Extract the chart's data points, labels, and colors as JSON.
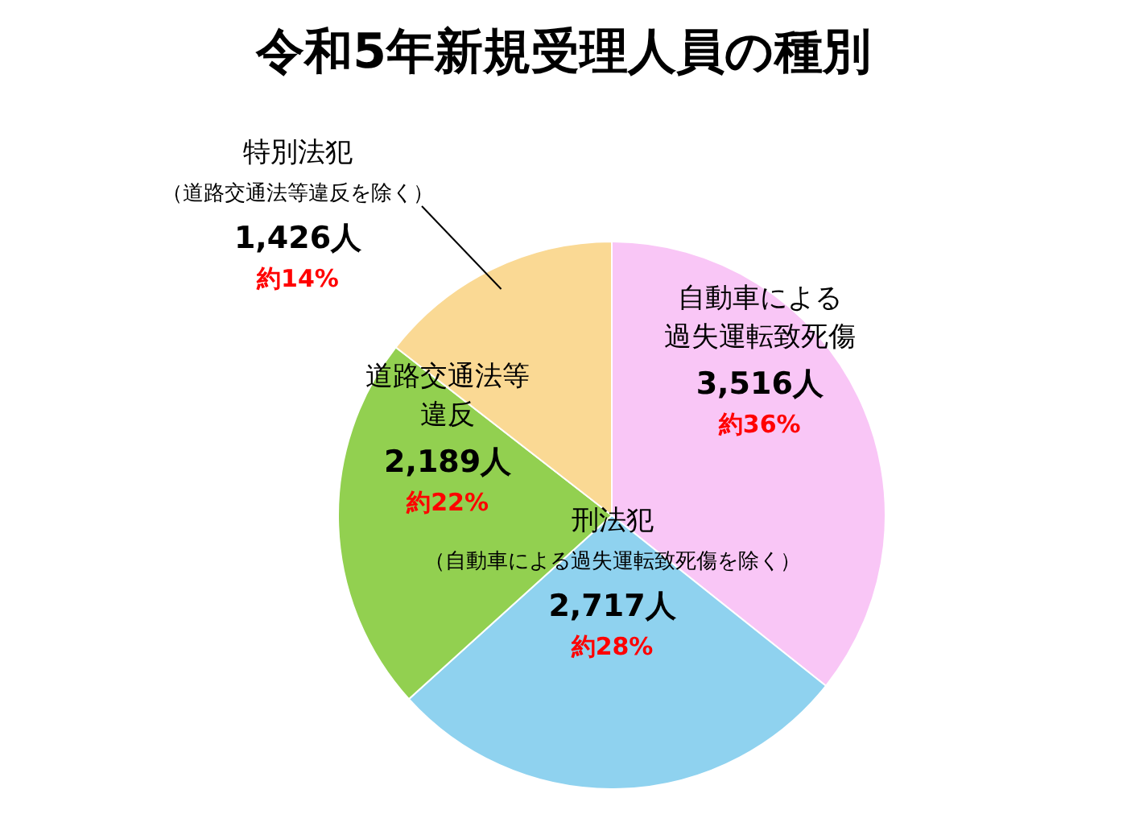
{
  "chart_data": {
    "type": "pie",
    "title": "令和5年新規受理人員の種別",
    "categories": [
      "自動車による過失運転致死傷",
      "刑法犯（自動車による過失運転致死傷を除く）",
      "道路交通法等違反",
      "特別法犯（道路交通法等違反を除く）"
    ],
    "values": [
      3516,
      2717,
      2189,
      1426
    ],
    "colors": [
      "#f9c6f6",
      "#8fd2ef",
      "#92d050",
      "#fad994"
    ],
    "value_labels": [
      "3,516人",
      "2,717人",
      "2,189人",
      "1,426人"
    ],
    "annotations": [
      "約36%",
      "約28%",
      "約22%",
      "約14%"
    ],
    "legend": false
  }
}
